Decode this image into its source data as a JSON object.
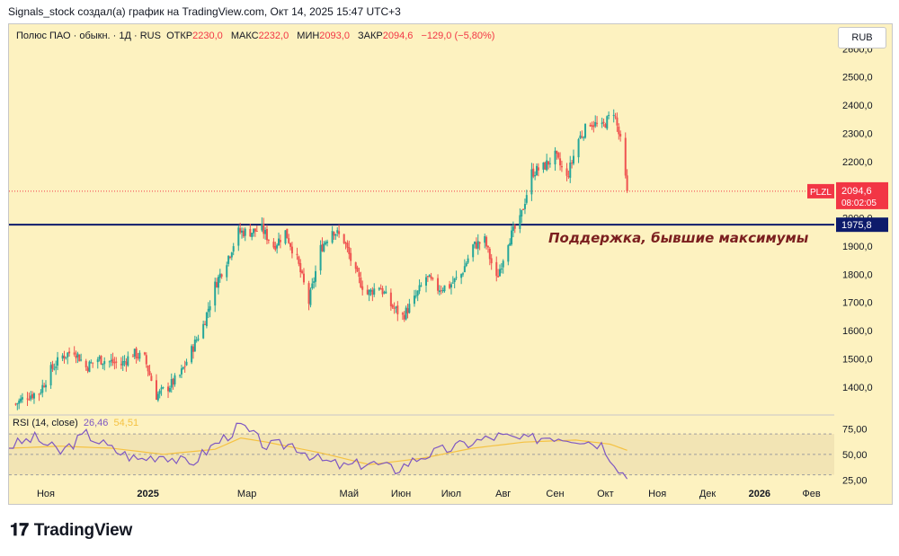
{
  "header": {
    "text": "Signals_stock создал(а) график на TradingView.com, Окт 14, 2025 15:47 UTC+3"
  },
  "symbol": {
    "name": "Полюс ПАО · обыкн. · 1Д · RUS",
    "open_label": "ОТКР",
    "open": "2230,0",
    "high_label": "МАКС",
    "high": "2232,0",
    "low_label": "МИН",
    "low": "2093,0",
    "close_label": "ЗАКР",
    "close": "2094,6",
    "change": "−129,0 (−5,80%)"
  },
  "currency_button": "RUB",
  "rsi": {
    "label": "RSI (14, close)",
    "value1": "26,46",
    "value2": "54,51"
  },
  "footer": {
    "brand": "TradingView"
  },
  "colors": {
    "up": "#26a69a",
    "down": "#ef5350",
    "plot_bg": "#fdf2c0",
    "support": "#0d1b6b",
    "price": "#f23645",
    "rsi": "#7e57c2",
    "rsi_ma": "#f5c242"
  },
  "chart_data": [
    {
      "type": "candlestick",
      "ticker": "PLZL",
      "y_axis": {
        "ticks": [
          "2600,0",
          "2500,0",
          "2400,0",
          "2300,0",
          "2200,0",
          "2100,0",
          "2000,0",
          "1900,0",
          "1800,0",
          "1700,0",
          "1600,0",
          "1500,0",
          "1400,0"
        ],
        "range": [
          1320,
          2620
        ],
        "side": "right"
      },
      "x_axis": {
        "labels": [
          "Ноя",
          "2025",
          "Мар",
          "Май",
          "Июн",
          "Июл",
          "Авг",
          "Сен",
          "Окт",
          "Ноя",
          "Дек",
          "2026",
          "Фев"
        ]
      },
      "last_price": {
        "label": "PLZL",
        "value": "2094,6",
        "countdown": "08:02:05",
        "numeric": 2094.6
      },
      "support_line": {
        "value": 1975.8,
        "label": "1975,8"
      },
      "annotation": "Поддержка, бывшие максимумы",
      "price_path": [
        [
          "2024-10-14",
          1340
        ],
        [
          "2024-10-21",
          1370
        ],
        [
          "2024-10-28",
          1380
        ],
        [
          "2024-11-04",
          1460
        ],
        [
          "2024-11-11",
          1510
        ],
        [
          "2024-11-18",
          1530
        ],
        [
          "2024-11-25",
          1470
        ],
        [
          "2024-12-02",
          1500
        ],
        [
          "2024-12-09",
          1490
        ],
        [
          "2024-12-16",
          1480
        ],
        [
          "2024-12-23",
          1520
        ],
        [
          "2024-12-30",
          1500
        ],
        [
          "2025-01-06",
          1370
        ],
        [
          "2025-01-13",
          1400
        ],
        [
          "2025-01-20",
          1440
        ],
        [
          "2025-01-27",
          1530
        ],
        [
          "2025-02-03",
          1620
        ],
        [
          "2025-02-10",
          1760
        ],
        [
          "2025-02-17",
          1850
        ],
        [
          "2025-02-24",
          1950
        ],
        [
          "2025-03-03",
          1950
        ],
        [
          "2025-03-10",
          1960
        ],
        [
          "2025-03-17",
          1900
        ],
        [
          "2025-03-24",
          1950
        ],
        [
          "2025-03-31",
          1850
        ],
        [
          "2025-04-07",
          1700
        ],
        [
          "2025-04-14",
          1890
        ],
        [
          "2025-04-21",
          1960
        ],
        [
          "2025-04-28",
          1920
        ],
        [
          "2025-05-05",
          1800
        ],
        [
          "2025-05-12",
          1730
        ],
        [
          "2025-05-19",
          1760
        ],
        [
          "2025-05-26",
          1690
        ],
        [
          "2025-06-02",
          1650
        ],
        [
          "2025-06-09",
          1710
        ],
        [
          "2025-06-16",
          1790
        ],
        [
          "2025-06-23",
          1750
        ],
        [
          "2025-06-30",
          1760
        ],
        [
          "2025-07-07",
          1800
        ],
        [
          "2025-07-14",
          1900
        ],
        [
          "2025-07-21",
          1920
        ],
        [
          "2025-07-28",
          1780
        ],
        [
          "2025-08-04",
          1920
        ],
        [
          "2025-08-11",
          1990
        ],
        [
          "2025-08-18",
          2160
        ],
        [
          "2025-08-25",
          2180
        ],
        [
          "2025-09-01",
          2220
        ],
        [
          "2025-09-08",
          2140
        ],
        [
          "2025-09-15",
          2280
        ],
        [
          "2025-09-22",
          2340
        ],
        [
          "2025-09-29",
          2320
        ],
        [
          "2025-10-06",
          2380
        ],
        [
          "2025-10-10",
          2270
        ],
        [
          "2025-10-14",
          2094.6
        ]
      ]
    },
    {
      "type": "line",
      "title": "RSI (14, close)",
      "y_axis": {
        "ticks": [
          "75,00",
          "50,00",
          "25,00"
        ],
        "range": [
          20,
          85
        ]
      },
      "band": [
        30,
        70
      ],
      "series": [
        {
          "values_path": [
            [
              0,
              58
            ],
            [
              3,
              66
            ],
            [
              6,
              52
            ],
            [
              9,
              70
            ],
            [
              12,
              55
            ],
            [
              15,
              45
            ],
            [
              18,
              50
            ],
            [
              21,
              40
            ],
            [
              24,
              60
            ],
            [
              27,
              78
            ],
            [
              30,
              58
            ],
            [
              33,
              60
            ],
            [
              36,
              45
            ],
            [
              39,
              38
            ],
            [
              42,
              42
            ],
            [
              45,
              35
            ],
            [
              48,
              48
            ],
            [
              51,
              55
            ],
            [
              54,
              62
            ],
            [
              57,
              68
            ],
            [
              60,
              64
            ],
            [
              63,
              68
            ],
            [
              66,
              66
            ],
            [
              69,
              60
            ],
            [
              72,
              26
            ]
          ]
        },
        {
          "values_path": [
            [
              0,
              56
            ],
            [
              6,
              58
            ],
            [
              12,
              56
            ],
            [
              18,
              50
            ],
            [
              24,
              55
            ],
            [
              27,
              66
            ],
            [
              30,
              62
            ],
            [
              36,
              52
            ],
            [
              42,
              40
            ],
            [
              48,
              46
            ],
            [
              54,
              56
            ],
            [
              60,
              62
            ],
            [
              66,
              64
            ],
            [
              70,
              60
            ],
            [
              72,
              54
            ]
          ]
        }
      ]
    }
  ]
}
